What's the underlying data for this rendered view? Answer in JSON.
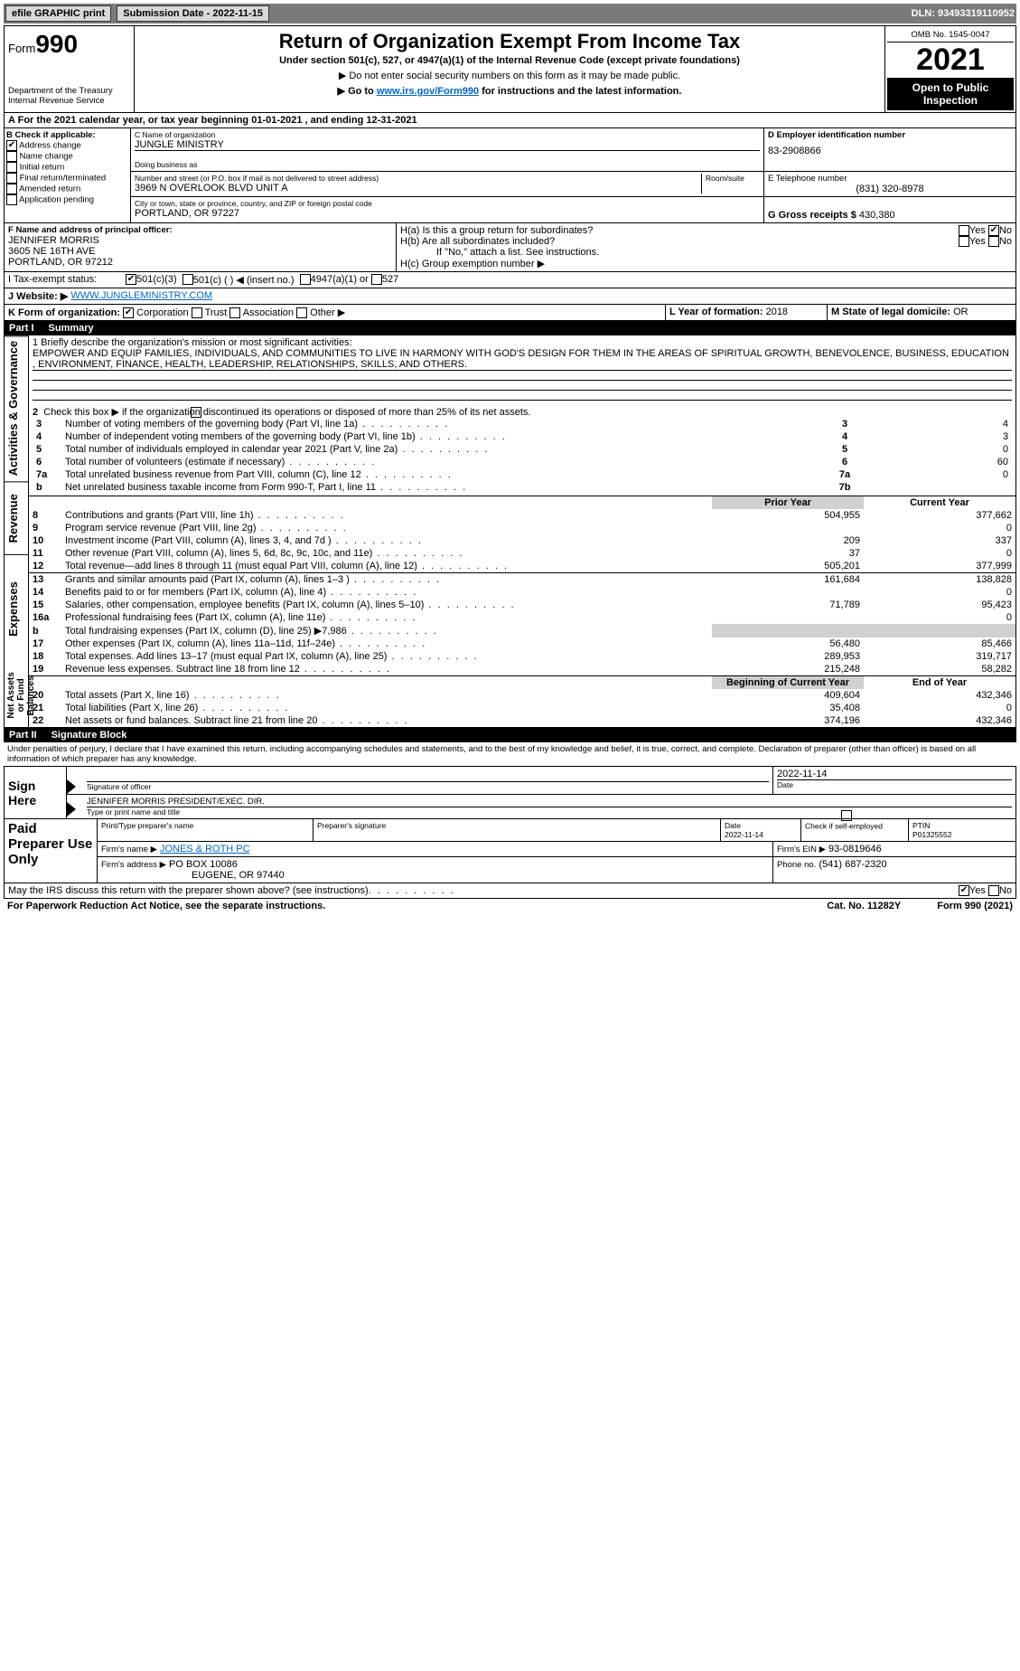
{
  "topbar": {
    "efile": "efile GRAPHIC print",
    "submission_label": "Submission Date - 2022-11-15",
    "dln": "DLN: 93493319110952"
  },
  "header": {
    "form_word": "Form",
    "form_no": "990",
    "title": "Return of Organization Exempt From Income Tax",
    "subtitle": "Under section 501(c), 527, or 4947(a)(1) of the Internal Revenue Code (except private foundations)",
    "note1": "▶ Do not enter social security numbers on this form as it may be made public.",
    "note2_pre": "▶ Go to ",
    "note2_link": "www.irs.gov/Form990",
    "note2_post": " for instructions and the latest information.",
    "dept": "Department of the Treasury",
    "irs": "Internal Revenue Service",
    "omb": "OMB No. 1545-0047",
    "year": "2021",
    "open": "Open to Public Inspection"
  },
  "lineA": "For the 2021 calendar year, or tax year beginning 01-01-2021    , and ending 12-31-2021",
  "sectionB": {
    "label": "B Check if applicable:",
    "items": {
      "addr": "Address change",
      "name": "Name change",
      "init": "Initial return",
      "final": "Final return/terminated",
      "amend": "Amended return",
      "app": "Application pending"
    }
  },
  "sectionC": {
    "label": "C Name of organization",
    "org": "JUNGLE MINISTRY",
    "dba_label": "Doing business as",
    "street_label": "Number and street (or P.O. box if mail is not delivered to street address)",
    "room_label": "Room/suite",
    "street": "3969 N OVERLOOK BLVD UNIT A",
    "city_label": "City or town, state or province, country, and ZIP or foreign postal code",
    "city": "PORTLAND, OR  97227"
  },
  "sectionD": {
    "label": "D Employer identification number",
    "ein": "83-2908866"
  },
  "sectionE": {
    "label": "E Telephone number",
    "phone": "(831) 320-8978"
  },
  "sectionG": {
    "label": "G Gross receipts $",
    "amount": "430,380"
  },
  "sectionF": {
    "label": "F Name and address of principal officer:",
    "name": "JENNIFER MORRIS",
    "addr1": "3605 NE 16TH AVE",
    "addr2": "PORTLAND, OR  97212"
  },
  "sectionH": {
    "a": "H(a)  Is this a group return for subordinates?",
    "b": "H(b)  Are all subordinates included?",
    "b_note": "If \"No,\" attach a list. See instructions.",
    "c": "H(c)  Group exemption number ▶",
    "yes": "Yes",
    "no": "No"
  },
  "sectionI": {
    "label": "I    Tax-exempt status:",
    "c3": "501(c)(3)",
    "c": "501(c) (  ) ◀ (insert no.)",
    "a1": "4947(a)(1) or",
    "s527": "527"
  },
  "sectionJ": {
    "label": "J    Website: ▶",
    "url": "WWW.JUNGLEMINISTRY.COM"
  },
  "sectionK": {
    "label": "K Form of organization:",
    "corp": "Corporation",
    "trust": "Trust",
    "assoc": "Association",
    "other": "Other ▶"
  },
  "sectionL": {
    "label": "L Year of formation:",
    "val": "2018"
  },
  "sectionM": {
    "label": "M State of legal domicile:",
    "val": "OR"
  },
  "part1": {
    "hdr_part": "Part I",
    "hdr_title": "Summary",
    "line1_label": "1  Briefly describe the organization's mission or most significant activities:",
    "mission": "EMPOWER AND EQUIP FAMILIES, INDIVIDUALS, AND COMMUNITIES TO LIVE IN HARMONY WITH GOD'S DESIGN FOR THEM IN THE AREAS OF SPIRITUAL GROWTH, BENEVOLENCE, BUSINESS, EDUCATION , ENVIRONMENT, FINANCE, HEALTH, LEADERSHIP, RELATIONSHIPS, SKILLS, AND OTHERS.",
    "line2": "Check this box ▶        if the organization discontinued its operations or disposed of more than 25% of its net assets.",
    "vlabels": {
      "gov": "Activities & Governance",
      "rev": "Revenue",
      "exp": "Expenses",
      "net": "Net Assets or Fund Balances"
    },
    "col_prior": "Prior Year",
    "col_curr": "Current Year",
    "col_begin": "Beginning of Current Year",
    "col_end": "End of Year",
    "gov_rows": [
      {
        "n": "3",
        "t": "Number of voting members of the governing body (Part VI, line 1a)",
        "box": "3",
        "v": "4"
      },
      {
        "n": "4",
        "t": "Number of independent voting members of the governing body (Part VI, line 1b)",
        "box": "4",
        "v": "3"
      },
      {
        "n": "5",
        "t": "Total number of individuals employed in calendar year 2021 (Part V, line 2a)",
        "box": "5",
        "v": "0"
      },
      {
        "n": "6",
        "t": "Total number of volunteers (estimate if necessary)",
        "box": "6",
        "v": "60"
      },
      {
        "n": "7a",
        "t": "Total unrelated business revenue from Part VIII, column (C), line 12",
        "box": "7a",
        "v": "0"
      },
      {
        "n": "b",
        "t": "Net unrelated business taxable income from Form 990-T, Part I, line 11",
        "box": "7b",
        "v": ""
      }
    ],
    "rev_rows": [
      {
        "n": "8",
        "t": "Contributions and grants (Part VIII, line 1h)",
        "p": "504,955",
        "c": "377,662"
      },
      {
        "n": "9",
        "t": "Program service revenue (Part VIII, line 2g)",
        "p": "",
        "c": "0"
      },
      {
        "n": "10",
        "t": "Investment income (Part VIII, column (A), lines 3, 4, and 7d )",
        "p": "209",
        "c": "337"
      },
      {
        "n": "11",
        "t": "Other revenue (Part VIII, column (A), lines 5, 6d, 8c, 9c, 10c, and 11e)",
        "p": "37",
        "c": "0"
      },
      {
        "n": "12",
        "t": "Total revenue—add lines 8 through 11 (must equal Part VIII, column (A), line 12)",
        "p": "505,201",
        "c": "377,999"
      }
    ],
    "exp_rows": [
      {
        "n": "13",
        "t": "Grants and similar amounts paid (Part IX, column (A), lines 1–3 )",
        "p": "161,684",
        "c": "138,828"
      },
      {
        "n": "14",
        "t": "Benefits paid to or for members (Part IX, column (A), line 4)",
        "p": "",
        "c": "0"
      },
      {
        "n": "15",
        "t": "Salaries, other compensation, employee benefits (Part IX, column (A), lines 5–10)",
        "p": "71,789",
        "c": "95,423"
      },
      {
        "n": "16a",
        "t": "Professional fundraising fees (Part IX, column (A), line 11e)",
        "p": "",
        "c": "0"
      },
      {
        "n": "b",
        "t": "Total fundraising expenses (Part IX, column (D), line 25) ▶7,986",
        "p": "SHADE",
        "c": "SHADE"
      },
      {
        "n": "17",
        "t": "Other expenses (Part IX, column (A), lines 11a–11d, 11f–24e)",
        "p": "56,480",
        "c": "85,466"
      },
      {
        "n": "18",
        "t": "Total expenses. Add lines 13–17 (must equal Part IX, column (A), line 25)",
        "p": "289,953",
        "c": "319,717"
      },
      {
        "n": "19",
        "t": "Revenue less expenses. Subtract line 18 from line 12",
        "p": "215,248",
        "c": "58,282"
      }
    ],
    "net_rows": [
      {
        "n": "20",
        "t": "Total assets (Part X, line 16)",
        "p": "409,604",
        "c": "432,346"
      },
      {
        "n": "21",
        "t": "Total liabilities (Part X, line 26)",
        "p": "35,408",
        "c": "0"
      },
      {
        "n": "22",
        "t": "Net assets or fund balances. Subtract line 21 from line 20",
        "p": "374,196",
        "c": "432,346"
      }
    ]
  },
  "part2": {
    "hdr_part": "Part II",
    "hdr_title": "Signature Block",
    "decl": "Under penalties of perjury, I declare that I have examined this return, including accompanying schedules and statements, and to the best of my knowledge and belief, it is true, correct, and complete. Declaration of preparer (other than officer) is based on all information of which preparer has any knowledge.",
    "sign_here": "Sign Here",
    "sig_officer": "Signature of officer",
    "date": "Date",
    "sig_date": "2022-11-14",
    "name_title": "JENNIFER MORRIS  PRESIDENT/EXEC. DIR.",
    "type_name": "Type or print name and title",
    "paid": "Paid Preparer Use Only",
    "prep_name_label": "Print/Type preparer's name",
    "prep_sig_label": "Preparer's signature",
    "prep_date_label": "Date",
    "prep_date": "2022-11-14",
    "check_if": "Check         if self-employed",
    "ptin_label": "PTIN",
    "ptin": "P01325552",
    "firm_name_label": "Firm's name    ▶",
    "firm_name": "JONES & ROTH PC",
    "firm_ein_label": "Firm's EIN ▶",
    "firm_ein": "93-0819646",
    "firm_addr_label": "Firm's address ▶",
    "firm_addr1": "PO BOX 10086",
    "firm_addr2": "EUGENE, OR  97440",
    "phone_label": "Phone no.",
    "phone": "(541) 687-2320",
    "discuss": "May the IRS discuss this return with the preparer shown above? (see instructions)",
    "yes": "Yes",
    "no": "No"
  },
  "footer": {
    "pra": "For Paperwork Reduction Act Notice, see the separate instructions.",
    "cat": "Cat. No. 11282Y",
    "form": "Form 990 (2021)"
  }
}
